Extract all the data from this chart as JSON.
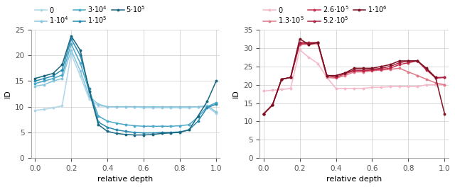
{
  "left": {
    "x": [
      0.0,
      0.05,
      0.1,
      0.15,
      0.2,
      0.25,
      0.3,
      0.35,
      0.4,
      0.45,
      0.5,
      0.55,
      0.6,
      0.65,
      0.7,
      0.75,
      0.8,
      0.85,
      0.9,
      0.95,
      1.0
    ],
    "series": [
      {
        "label": "$0$",
        "color": "#aed6e8",
        "values": [
          9.3,
          9.5,
          9.8,
          10.2,
          20.3,
          16.0,
          11.5,
          10.2,
          10.0,
          10.0,
          10.0,
          10.0,
          9.8,
          9.8,
          9.8,
          9.8,
          9.8,
          9.8,
          10.0,
          10.0,
          8.7
        ]
      },
      {
        "label": "$1{\\cdot}10^4$",
        "color": "#88c5dc",
        "values": [
          14.0,
          14.3,
          15.0,
          15.5,
          21.0,
          17.0,
          12.0,
          10.5,
          10.0,
          10.0,
          10.0,
          10.0,
          10.0,
          10.0,
          10.0,
          10.0,
          10.0,
          10.0,
          10.0,
          10.2,
          9.0
        ]
      },
      {
        "label": "$3{\\cdot}10^4$",
        "color": "#4aa8c8",
        "values": [
          14.5,
          15.0,
          15.5,
          16.2,
          22.2,
          18.5,
          13.0,
          8.2,
          7.2,
          6.8,
          6.5,
          6.3,
          6.2,
          6.2,
          6.2,
          6.2,
          6.3,
          6.5,
          8.0,
          10.0,
          10.8
        ]
      },
      {
        "label": "$1{\\cdot}10^5$",
        "color": "#2a8ab0",
        "values": [
          15.0,
          15.5,
          16.0,
          17.2,
          23.2,
          20.0,
          13.5,
          7.0,
          6.0,
          5.5,
          5.2,
          5.0,
          4.9,
          4.9,
          5.0,
          5.0,
          5.1,
          5.5,
          7.2,
          9.8,
          10.5
        ]
      },
      {
        "label": "$5{\\cdot}10^5$",
        "color": "#1a6880",
        "values": [
          15.5,
          16.0,
          16.5,
          18.2,
          23.8,
          21.0,
          13.0,
          6.5,
          5.2,
          4.8,
          4.6,
          4.5,
          4.5,
          4.6,
          4.8,
          4.9,
          5.0,
          5.5,
          8.2,
          11.0,
          15.0
        ]
      }
    ],
    "ylim": [
      0,
      25
    ],
    "yticks": [
      0,
      5,
      10,
      15,
      20,
      25
    ],
    "ylabel": "ID",
    "xlabel": "relative depth"
  },
  "right": {
    "x": [
      0.0,
      0.05,
      0.1,
      0.15,
      0.2,
      0.25,
      0.3,
      0.35,
      0.4,
      0.45,
      0.5,
      0.55,
      0.6,
      0.65,
      0.7,
      0.75,
      0.8,
      0.85,
      0.9,
      0.95,
      1.0
    ],
    "series": [
      {
        "label": "$0$",
        "color": "#f4b8c8",
        "values": [
          18.3,
          18.5,
          18.7,
          19.0,
          29.5,
          27.5,
          25.8,
          22.0,
          19.0,
          19.0,
          19.0,
          19.0,
          19.3,
          19.3,
          19.5,
          19.5,
          19.5,
          19.5,
          20.0,
          20.0,
          20.0
        ]
      },
      {
        "label": "$1.3{\\cdot}10^5$",
        "color": "#e07888",
        "values": [
          12.0,
          14.5,
          21.5,
          22.0,
          31.0,
          31.0,
          31.2,
          22.0,
          21.8,
          22.5,
          23.5,
          23.5,
          23.8,
          24.0,
          24.2,
          24.5,
          23.5,
          22.5,
          21.5,
          20.5,
          20.0
        ]
      },
      {
        "label": "$2.6{\\cdot}10^5$",
        "color": "#c83050",
        "values": [
          12.0,
          14.5,
          21.5,
          22.0,
          31.2,
          31.2,
          31.5,
          22.5,
          22.0,
          23.0,
          23.8,
          23.8,
          24.0,
          24.2,
          24.5,
          25.5,
          26.0,
          26.5,
          24.0,
          22.0,
          22.0
        ]
      },
      {
        "label": "$5.2{\\cdot}10^5$",
        "color": "#aa2040",
        "values": [
          12.0,
          14.5,
          21.5,
          22.0,
          31.5,
          31.5,
          31.5,
          22.5,
          22.5,
          23.2,
          24.0,
          24.0,
          24.2,
          24.5,
          25.0,
          26.0,
          26.5,
          26.5,
          24.2,
          21.8,
          22.0
        ]
      },
      {
        "label": "$1{\\cdot}10^6$",
        "color": "#7a1020",
        "values": [
          12.0,
          14.5,
          21.5,
          22.0,
          32.5,
          31.0,
          31.5,
          22.5,
          22.5,
          23.2,
          24.5,
          24.5,
          24.5,
          25.0,
          25.5,
          26.5,
          26.5,
          26.5,
          24.5,
          22.0,
          12.0
        ]
      }
    ],
    "ylim": [
      0,
      35
    ],
    "yticks": [
      0,
      5,
      10,
      15,
      20,
      25,
      30,
      35
    ],
    "ylabel": "ID",
    "xlabel": "relative depth"
  }
}
